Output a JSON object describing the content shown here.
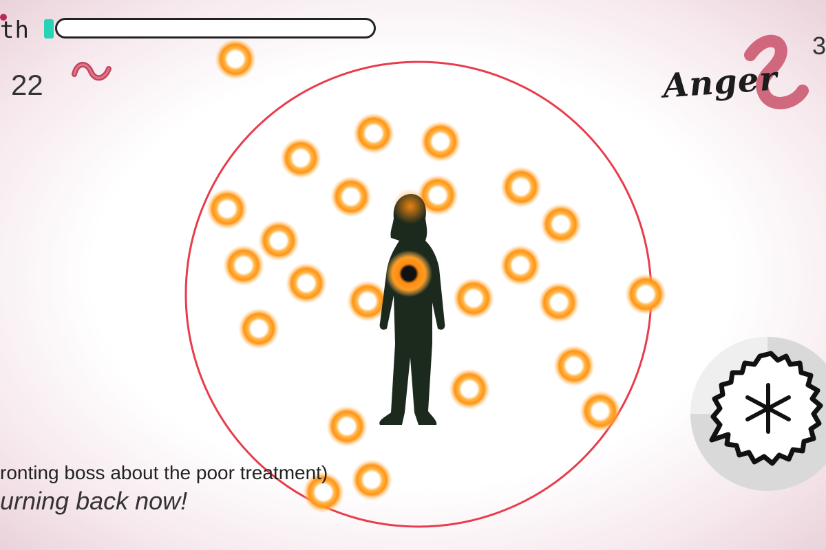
{
  "hud": {
    "health_label": "th",
    "health_percent": 3,
    "score": "22",
    "emotion": "Anger",
    "emotion_level": "3"
  },
  "dialogue": {
    "line_1": "ronting boss about the poor treatment)",
    "line_2": "urning back now!"
  },
  "icons": {
    "score": "squiggle-worm-icon",
    "emotion": "anger-swirl-icon",
    "ability": "asterisk-burst-icon"
  },
  "colors": {
    "ring": "#e83c4c",
    "orb_outer": "#ff9a16",
    "orb_inner": "#ffffff",
    "silhouette": "#1c2a1e",
    "health_fill": "#27d3b5",
    "accent": "#b8285a"
  }
}
